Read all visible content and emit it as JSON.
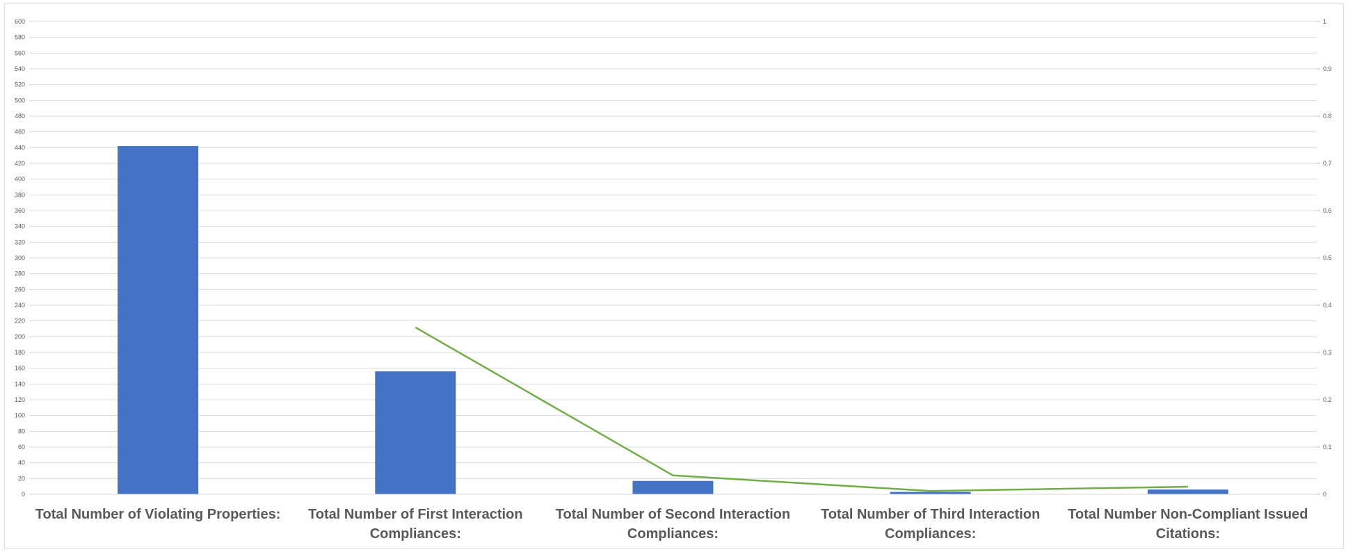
{
  "chart_data": {
    "type": "bar",
    "categories": [
      [
        "Total Number of Violating Properties:"
      ],
      [
        "Total Number of First Interaction",
        "Compliances:"
      ],
      [
        "Total Number of Second Interaction",
        "Compliances:"
      ],
      [
        "Total Number of Third Interaction",
        "Compliances:"
      ],
      [
        "Total Number Non-Compliant Issued",
        "Citations:"
      ]
    ],
    "series": [
      {
        "type": "bar",
        "axis": "left",
        "values": [
          442,
          156,
          17,
          3,
          6
        ],
        "color": "#4472c4"
      },
      {
        "type": "line",
        "axis": "right",
        "values": [
          null,
          0.353,
          0.04,
          0.007,
          0.016
        ],
        "color": "#70ad47"
      }
    ],
    "ylim": [
      0,
      600
    ],
    "y_ticks": [
      "0",
      "20",
      "40",
      "60",
      "80",
      "100",
      "120",
      "140",
      "160",
      "180",
      "200",
      "220",
      "240",
      "260",
      "280",
      "300",
      "320",
      "340",
      "360",
      "380",
      "400",
      "420",
      "440",
      "460",
      "480",
      "500",
      "520",
      "540",
      "560",
      "580",
      "600"
    ],
    "y2lim": [
      0,
      1
    ],
    "y2_ticks": [
      "0",
      "0.1",
      "0.2",
      "0.3",
      "0.4",
      "0.5",
      "0.6",
      "0.7",
      "0.8",
      "0.9",
      "1"
    ],
    "grid": true,
    "legend": "none"
  }
}
